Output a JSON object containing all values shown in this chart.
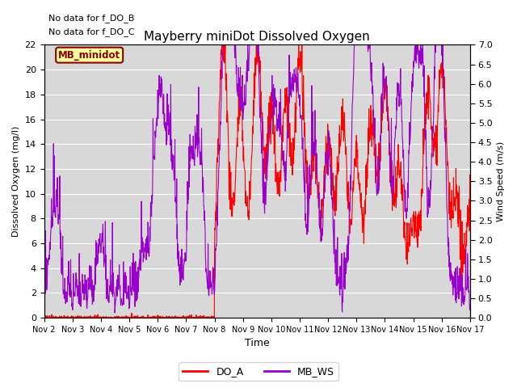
{
  "title": "Mayberry miniDot Dissolved Oxygen",
  "ylabel_left": "Dissolved Oxygen (mg/l)",
  "ylabel_right": "Wind Speed (m/s)",
  "xlabel": "Time",
  "ylim_left": [
    0,
    22
  ],
  "ylim_right": [
    0.0,
    7.0
  ],
  "annotation1": "No data for f_DO_B",
  "annotation2": "No data for f_DO_C",
  "box_label": "MB_minidot",
  "legend_entries": [
    "DO_A",
    "MB_WS"
  ],
  "line_color_do": "red",
  "line_color_ws": "#9900CC",
  "x_tick_labels": [
    "Nov 2",
    "Nov 3",
    "Nov 4",
    "Nov 5",
    "Nov 6",
    "Nov 7",
    "Nov 8",
    "Nov 9",
    "Nov 10",
    "Nov 11",
    "Nov 12",
    "Nov 13",
    "Nov 14",
    "Nov 15",
    "Nov 16",
    "Nov 17"
  ],
  "background_color": "#d8d8d8",
  "grid_color": "white",
  "fig_width": 6.4,
  "fig_height": 4.8,
  "dpi": 100
}
